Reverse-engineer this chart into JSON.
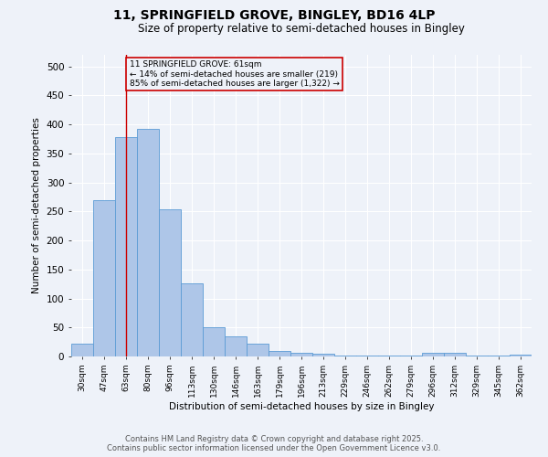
{
  "title_line1": "11, SPRINGFIELD GROVE, BINGLEY, BD16 4LP",
  "title_line2": "Size of property relative to semi-detached houses in Bingley",
  "bar_labels": [
    "30sqm",
    "47sqm",
    "63sqm",
    "80sqm",
    "96sqm",
    "113sqm",
    "130sqm",
    "146sqm",
    "163sqm",
    "179sqm",
    "196sqm",
    "213sqm",
    "229sqm",
    "246sqm",
    "262sqm",
    "279sqm",
    "296sqm",
    "312sqm",
    "329sqm",
    "345sqm",
    "362sqm"
  ],
  "bar_values": [
    22,
    270,
    378,
    393,
    253,
    126,
    50,
    35,
    22,
    10,
    7,
    4,
    2,
    1,
    1,
    1,
    6,
    7,
    1,
    1,
    3
  ],
  "bar_color": "#aec6e8",
  "bar_edge_color": "#5b9bd5",
  "ylabel": "Number of semi-detached properties",
  "xlabel": "Distribution of semi-detached houses by size in Bingley",
  "ylim": [
    0,
    520
  ],
  "yticks": [
    0,
    50,
    100,
    150,
    200,
    250,
    300,
    350,
    400,
    450,
    500
  ],
  "property_line_x": 2,
  "property_line_color": "#cc0000",
  "annotation_text": "11 SPRINGFIELD GROVE: 61sqm\n← 14% of semi-detached houses are smaller (219)\n85% of semi-detached houses are larger (1,322) →",
  "annotation_box_color": "#cc0000",
  "footer_line1": "Contains HM Land Registry data © Crown copyright and database right 2025.",
  "footer_line2": "Contains public sector information licensed under the Open Government Licence v3.0.",
  "background_color": "#eef2f9",
  "grid_color": "#ffffff"
}
